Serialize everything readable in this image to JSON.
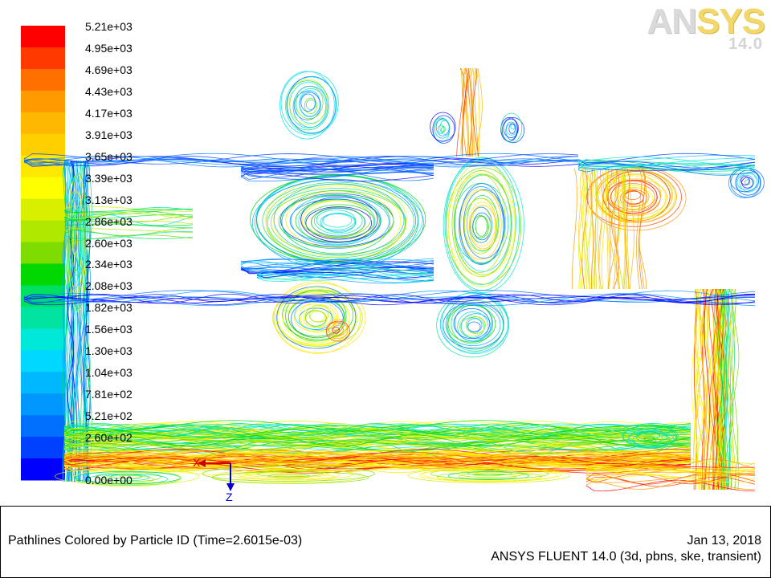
{
  "chart_data": {
    "type": "heatmap",
    "title": "Pathlines Colored by Particle ID",
    "time": "(Time=2.6015e-03)",
    "colorbar": {
      "ticks": [
        "5.21e+03",
        "4.95e+03",
        "4.69e+03",
        "4.43e+03",
        "4.17e+03",
        "3.91e+03",
        "3.65e+03",
        "3.39e+03",
        "3.13e+03",
        "2.86e+03",
        "2.60e+03",
        "2.34e+03",
        "2.08e+03",
        "1.82e+03",
        "1.56e+03",
        "1.30e+03",
        "1.04e+03",
        "7.81e+02",
        "5.21e+02",
        "2.60e+02",
        "0.00e+00"
      ],
      "min": 0,
      "max": 5210,
      "colors": [
        "#ff0000",
        "#ff3a00",
        "#ff7000",
        "#ff9a00",
        "#ffb800",
        "#ffd000",
        "#ffe800",
        "#ffff00",
        "#d8f000",
        "#b0e800",
        "#7edc00",
        "#00d800",
        "#00e060",
        "#00e4a0",
        "#00e8d8",
        "#00d8ff",
        "#00b8ff",
        "#0098ff",
        "#0070ff",
        "#0040ff",
        "#0000ff"
      ]
    },
    "axes": {
      "x": "X",
      "z": "Z"
    }
  },
  "logo": {
    "brand_a": "AN",
    "brand_b": "SYS",
    "version": "14.0"
  },
  "footer": {
    "title": "Pathlines Colored by Particle ID  (Time=2.6015e-03)",
    "date": "Jan 13, 2018",
    "solver": "ANSYS FLUENT 14.0 (3d, pbns, ske, transient)"
  }
}
